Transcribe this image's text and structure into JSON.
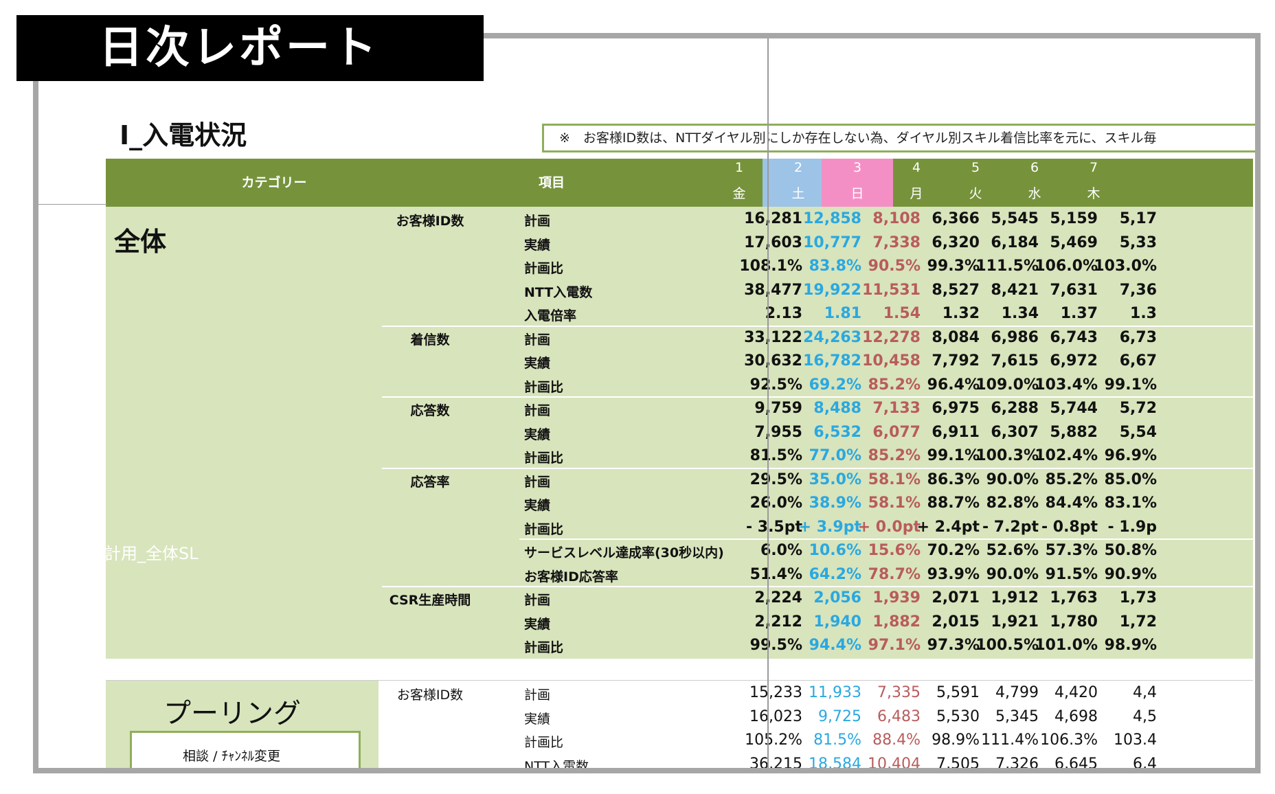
{
  "title": "日次レポート",
  "section_title": "Ⅰ_入電状況",
  "note": "※　お客様ID数は、NTTダイヤル別にしか存在しない為、ダイヤル別スキル着信比率を元に、スキル毎",
  "header": {
    "category": "カテゴリー",
    "item": "項目",
    "days": [
      {
        "num": "1",
        "weekday": "金"
      },
      {
        "num": "2",
        "weekday": "土"
      },
      {
        "num": "3",
        "weekday": "日"
      },
      {
        "num": "4",
        "weekday": "月"
      },
      {
        "num": "5",
        "weekday": "火"
      },
      {
        "num": "6",
        "weekday": "水"
      },
      {
        "num": "7",
        "weekday": "木"
      }
    ]
  },
  "colors": {
    "header_green": "#76933c",
    "block_green": "#d8e4bc",
    "saturday": "#2aa8e0",
    "sunday": "#b85c5c",
    "sat_bg": "#9dc3e6",
    "sun_bg": "#f48fc6"
  },
  "category_all": "全体",
  "ghost_text": "コール集計用_全体SL",
  "rows": [
    {
      "group": "お客様ID数",
      "item": "計画",
      "values": [
        "16,281",
        "12,858",
        "8,108",
        "6,366",
        "5,545",
        "5,159",
        "5,17"
      ]
    },
    {
      "group": "",
      "item": "実績",
      "values": [
        "17,603",
        "10,777",
        "7,338",
        "6,320",
        "6,184",
        "5,469",
        "5,33"
      ]
    },
    {
      "group": "",
      "item": "計画比",
      "values": [
        "108.1%",
        "83.8%",
        "90.5%",
        "99.3%",
        "111.5%",
        "106.0%",
        "103.0%"
      ]
    },
    {
      "group": "",
      "item": "NTT入電数",
      "values": [
        "38,477",
        "19,922",
        "11,531",
        "8,527",
        "8,421",
        "7,631",
        "7,36"
      ]
    },
    {
      "group": "",
      "item": "入電倍率",
      "values": [
        "2.13",
        "1.81",
        "1.54",
        "1.32",
        "1.34",
        "1.37",
        "1.3"
      ]
    },
    {
      "group": "着信数",
      "item": "計画",
      "values": [
        "33,122",
        "24,263",
        "12,278",
        "8,084",
        "6,986",
        "6,743",
        "6,73"
      ]
    },
    {
      "group": "",
      "item": "実績",
      "values": [
        "30,632",
        "16,782",
        "10,458",
        "7,792",
        "7,615",
        "6,972",
        "6,67"
      ]
    },
    {
      "group": "",
      "item": "計画比",
      "values": [
        "92.5%",
        "69.2%",
        "85.2%",
        "96.4%",
        "109.0%",
        "103.4%",
        "99.1%"
      ]
    },
    {
      "group": "応答数",
      "item": "計画",
      "values": [
        "9,759",
        "8,488",
        "7,133",
        "6,975",
        "6,288",
        "5,744",
        "5,72"
      ]
    },
    {
      "group": "",
      "item": "実績",
      "values": [
        "7,955",
        "6,532",
        "6,077",
        "6,911",
        "6,307",
        "5,882",
        "5,54"
      ]
    },
    {
      "group": "",
      "item": "計画比",
      "values": [
        "81.5%",
        "77.0%",
        "85.2%",
        "99.1%",
        "100.3%",
        "102.4%",
        "96.9%"
      ]
    },
    {
      "group": "応答率",
      "item": "計画",
      "values": [
        "29.5%",
        "35.0%",
        "58.1%",
        "86.3%",
        "90.0%",
        "85.2%",
        "85.0%"
      ]
    },
    {
      "group": "",
      "item": "実績",
      "values": [
        "26.0%",
        "38.9%",
        "58.1%",
        "88.7%",
        "82.8%",
        "84.4%",
        "83.1%"
      ]
    },
    {
      "group": "",
      "item": "計画比",
      "values": [
        "- 3.5pt",
        "+ 3.9pt",
        "+ 0.0pt",
        "+ 2.4pt",
        "- 7.2pt",
        "- 0.8pt",
        "- 1.9p"
      ]
    },
    {
      "group": "",
      "item": "サービスレベル達成率(30秒以内)",
      "values": [
        "6.0%",
        "10.6%",
        "15.6%",
        "70.2%",
        "52.6%",
        "57.3%",
        "50.8%"
      ]
    },
    {
      "group": "",
      "item": "お客様ID応答率",
      "values": [
        "51.4%",
        "64.2%",
        "78.7%",
        "93.9%",
        "90.0%",
        "91.5%",
        "90.9%"
      ]
    },
    {
      "group": "CSR生産時間",
      "item": "計画",
      "values": [
        "2,224",
        "2,056",
        "1,939",
        "2,071",
        "1,912",
        "1,763",
        "1,73"
      ]
    },
    {
      "group": "",
      "item": "実績",
      "values": [
        "2,212",
        "1,940",
        "1,882",
        "2,015",
        "1,921",
        "1,780",
        "1,72"
      ]
    },
    {
      "group": "",
      "item": "計画比",
      "values": [
        "99.5%",
        "94.4%",
        "97.1%",
        "97.3%",
        "100.5%",
        "101.0%",
        "98.9%"
      ]
    }
  ],
  "pooling": {
    "title": "プーリング",
    "sub": "相談 / ﾁｬﾝﾈﾙ変更",
    "rows": [
      {
        "group": "お客様ID数",
        "item": "計画",
        "values": [
          "15,233",
          "11,933",
          "7,335",
          "5,591",
          "4,799",
          "4,420",
          "4,4"
        ]
      },
      {
        "group": "",
        "item": "実績",
        "values": [
          "16,023",
          "9,725",
          "6,483",
          "5,530",
          "5,345",
          "4,698",
          "4,5"
        ]
      },
      {
        "group": "",
        "item": "計画比",
        "values": [
          "105.2%",
          "81.5%",
          "88.4%",
          "98.9%",
          "111.4%",
          "106.3%",
          "103.4"
        ]
      },
      {
        "group": "",
        "item": "NTT入電数",
        "values": [
          "36,215",
          "18,584",
          "10,404",
          "7,505",
          "7,326",
          "6,645",
          "6,4"
        ]
      }
    ]
  }
}
